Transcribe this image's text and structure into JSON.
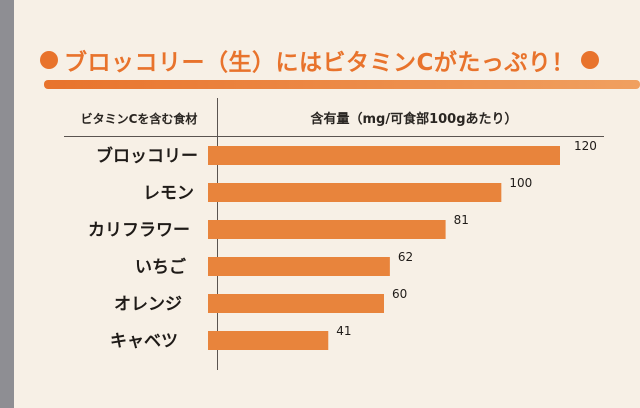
{
  "headline": "ブロッコリー（生）にはビタミンCがたっぷり！",
  "colors": {
    "accent": "#e8732c",
    "bar": "#e8843c"
  },
  "chart_data": {
    "type": "bar",
    "orientation": "horizontal",
    "title": "ブロッコリー（生）にはビタミンCがたっぷり！",
    "category_header": "ビタミンCを含む食材",
    "value_header": "含有量（mg/可食部100gあたり）",
    "categories": [
      "ブロッコリー",
      "レモン",
      "カリフラワー",
      "いちご",
      "オレンジ",
      "キャベツ"
    ],
    "values": [
      120,
      100,
      81,
      62,
      60,
      41
    ],
    "xlim": [
      0,
      120
    ],
    "grid": false,
    "legend": "none"
  }
}
